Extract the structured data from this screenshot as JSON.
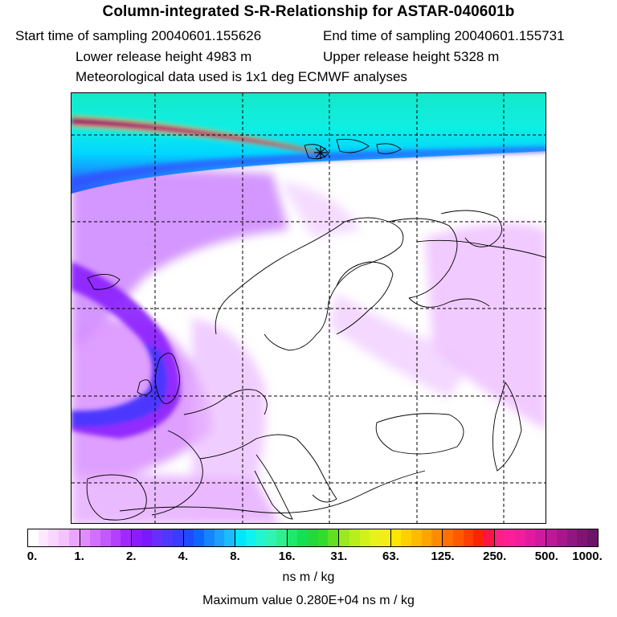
{
  "header": {
    "title": "Column-integrated S-R-Relationship for ASTAR-040601b",
    "start_time": "Start time of sampling 20040601.155626",
    "end_time": "End time of sampling 20040601.155731",
    "lower_height": "Lower release height 4983 m",
    "upper_height": "Upper release height 5328 m",
    "met_data": "Meteorological data used is 1x1 deg ECMWF analyses"
  },
  "map": {
    "grid": "dashed",
    "marker": "release-site-cross"
  },
  "colorbar": {
    "labels": [
      "0.",
      "1.",
      "2.",
      "4.",
      "8.",
      "16.",
      "31.",
      "63.",
      "125.",
      "250.",
      "500.",
      "1000."
    ],
    "colors": [
      "#ffffff",
      "#fce9ff",
      "#f8d6ff",
      "#f3c2ff",
      "#eaa6ff",
      "#e08cff",
      "#d070ff",
      "#c259ff",
      "#b440ff",
      "#a128ff",
      "#8a1cff",
      "#7a18ff",
      "#6a2dff",
      "#5037ff",
      "#3a3cff",
      "#1f4aff",
      "#0f66ff",
      "#1484ff",
      "#1aa0ff",
      "#1cbcff",
      "#00e6ff",
      "#10f2f0",
      "#22f5d2",
      "#30f3b6",
      "#2ef08e",
      "#1ee86a",
      "#14e054",
      "#22d83a",
      "#30dc2c",
      "#60e020",
      "#9ae81e",
      "#b8ee1c",
      "#d0f21a",
      "#e6f21a",
      "#f4ec18",
      "#ffe600",
      "#ffd000",
      "#ffbb00",
      "#ffa500",
      "#ff8c00",
      "#ff7000",
      "#ff5a00",
      "#ff3e00",
      "#ff2400",
      "#ff1448",
      "#ff1e84",
      "#ff1e98",
      "#f21c9e",
      "#e21aa0",
      "#d01a9e",
      "#be1898",
      "#a8168c",
      "#921680",
      "#801474",
      "#6e1468"
    ],
    "unit": "ns m / kg"
  },
  "footer": {
    "max_value": "Maximum value  0.280E+04 ns m / kg"
  }
}
